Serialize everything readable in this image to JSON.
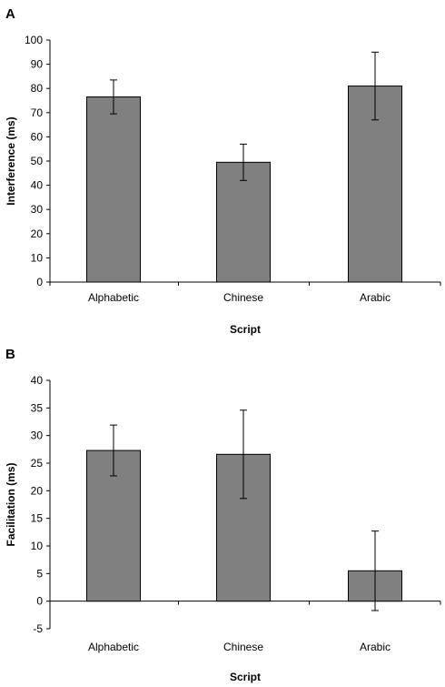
{
  "chart_data": [
    {
      "type": "bar",
      "panel_label": "A",
      "categories": [
        "Alphabetic",
        "Chinese",
        "Arabic"
      ],
      "values": [
        76.5,
        49.5,
        81.0
      ],
      "errors": [
        7,
        7.5,
        14
      ],
      "xlabel": "Script",
      "ylabel": "Interference (ms)",
      "ylim": [
        0,
        100
      ],
      "yticks": [
        0,
        10,
        20,
        30,
        40,
        50,
        60,
        70,
        80,
        90,
        100
      ],
      "bar_color": "#808080",
      "grid": false,
      "legend": "none"
    },
    {
      "type": "bar",
      "panel_label": "B",
      "categories": [
        "Alphabetic",
        "Chinese",
        "Arabic"
      ],
      "values": [
        27.3,
        26.6,
        5.5
      ],
      "errors": [
        4.6,
        8.0,
        7.2
      ],
      "xlabel": "Script",
      "ylabel": "Facilitation (ms)",
      "ylim": [
        -5,
        40
      ],
      "yticks": [
        -5,
        0,
        5,
        10,
        15,
        20,
        25,
        30,
        35,
        40
      ],
      "bar_color": "#808080",
      "grid": false,
      "legend": "none"
    }
  ]
}
